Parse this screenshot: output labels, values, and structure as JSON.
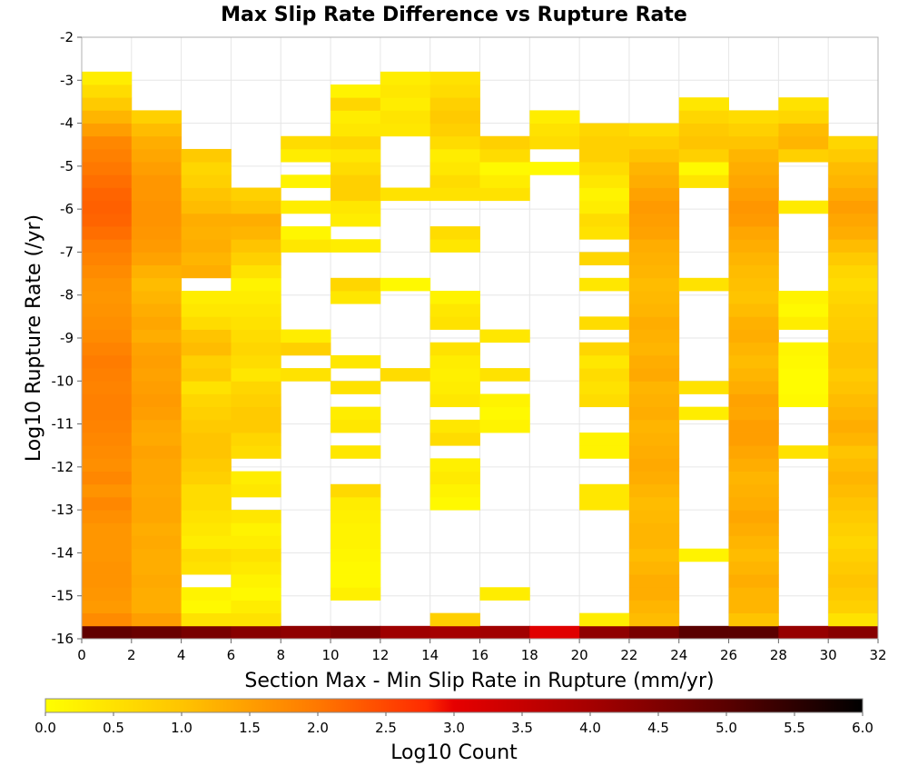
{
  "chart_data": {
    "type": "heatmap",
    "title": "Max Slip Rate Difference vs Rupture Rate",
    "xlabel": "Section Max - Min Slip Rate in Rupture (mm/yr)",
    "ylabel": "Log10 Rupture Rate (/yr)",
    "xlim": [
      0,
      32
    ],
    "ylim": [
      -16,
      -2
    ],
    "x_ticks": [
      "0",
      "2",
      "4",
      "6",
      "8",
      "10",
      "12",
      "14",
      "16",
      "18",
      "20",
      "22",
      "24",
      "26",
      "28",
      "30",
      "32"
    ],
    "y_ticks": [
      "-2",
      "-3",
      "-4",
      "-5",
      "-6",
      "-7",
      "-8",
      "-9",
      "-10",
      "-11",
      "-12",
      "-13",
      "-14",
      "-15",
      "-16"
    ],
    "x_bin_width": 2,
    "y_bin_height": 0.3,
    "y_bin_start": -16,
    "grid": true,
    "colorbar": {
      "label": "Log10 Count",
      "range": [
        0,
        6
      ],
      "ticks": [
        "0.0",
        "0.5",
        "1.0",
        "1.5",
        "2.0",
        "2.5",
        "3.0",
        "3.5",
        "4.0",
        "4.5",
        "5.0",
        "5.5",
        "6.0"
      ],
      "stops": [
        {
          "v": 0.0,
          "color": "#ffff00"
        },
        {
          "v": 1.0,
          "color": "#ffc400"
        },
        {
          "v": 2.0,
          "color": "#ff7800"
        },
        {
          "v": 2.8,
          "color": "#ff2a00"
        },
        {
          "v": 3.0,
          "color": "#e60000"
        },
        {
          "v": 4.0,
          "color": "#a50000"
        },
        {
          "v": 5.0,
          "color": "#5a0000"
        },
        {
          "v": 6.0,
          "color": "#000000"
        }
      ]
    },
    "columns": [
      {
        "x": 1,
        "rows": [
          4.9,
          1.75,
          1.55,
          1.6,
          1.65,
          1.65,
          1.6,
          1.6,
          1.6,
          1.7,
          1.8,
          1.65,
          1.8,
          1.7,
          1.75,
          1.8,
          1.85,
          1.9,
          1.9,
          1.85,
          1.9,
          1.95,
          1.85,
          1.75,
          1.7,
          1.65,
          1.6,
          1.65,
          1.75,
          1.85,
          1.95,
          2.1,
          2.2,
          2.25,
          2.2,
          2.1,
          2.0,
          1.9,
          1.8,
          1.5,
          1.2,
          0.9,
          0.6,
          0.3
        ]
      },
      {
        "x": 3,
        "rows": [
          4.8,
          1.5,
          1.3,
          1.3,
          1.35,
          1.3,
          1.3,
          1.35,
          1.3,
          1.4,
          1.4,
          1.35,
          1.4,
          1.4,
          1.45,
          1.35,
          1.4,
          1.5,
          1.55,
          1.5,
          1.45,
          1.5,
          1.45,
          1.3,
          1.4,
          1.3,
          1.2,
          1.1,
          1.25,
          1.45,
          1.55,
          1.6,
          1.65,
          1.65,
          1.6,
          1.6,
          1.5,
          1.4,
          1.3,
          1.1,
          0.8
        ]
      },
      {
        "x": 5,
        "rows": [
          4.6,
          0.5,
          0.1,
          0.2,
          null,
          0.5,
          0.6,
          0.3,
          0.4,
          0.5,
          0.6,
          0.6,
          0.8,
          0.9,
          1.0,
          1.0,
          0.9,
          0.8,
          0.7,
          0.5,
          0.9,
          0.8,
          1.1,
          1.0,
          0.6,
          0.4,
          0.3,
          null,
          1.3,
          1.2,
          1.3,
          1.25,
          1.3,
          1.1,
          1.0,
          0.8,
          0.7,
          0.9
        ]
      },
      {
        "x": 7,
        "rows": [
          4.4,
          0.5,
          0.3,
          0.1,
          0.2,
          0.35,
          0.5,
          0.3,
          0.2,
          0.4,
          null,
          0.4,
          0.3,
          null,
          0.6,
          0.7,
          0.9,
          0.9,
          0.8,
          0.7,
          0.4,
          0.6,
          0.7,
          0.6,
          0.5,
          0.4,
          0.3,
          0.2,
          0.5,
          0.8,
          1.0,
          1.2,
          1.3,
          1.0,
          0.8
        ]
      },
      {
        "x": 9,
        "rows": [
          4.3,
          null,
          null,
          null,
          null,
          null,
          null,
          null,
          null,
          null,
          null,
          null,
          null,
          null,
          null,
          null,
          null,
          null,
          null,
          null,
          0.5,
          null,
          0.8,
          0.3,
          null,
          null,
          null,
          null,
          null,
          null,
          0.4,
          0.15,
          null,
          0.3,
          null,
          0.2,
          null,
          0.3,
          0.6
        ]
      },
      {
        "x": 11,
        "rows": [
          4.5,
          null,
          null,
          0.25,
          0.1,
          0.1,
          0.15,
          0.2,
          0.2,
          0.25,
          0.3,
          0.65,
          null,
          null,
          0.4,
          null,
          0.4,
          0.3,
          null,
          0.5,
          null,
          0.4,
          null,
          null,
          null,
          null,
          0.4,
          0.7,
          null,
          null,
          0.3,
          null,
          0.3,
          0.4,
          0.8,
          0.8,
          0.6,
          0.4,
          0.7,
          0.4,
          0.3,
          0.7,
          0.2
        ]
      },
      {
        "x": 13,
        "rows": [
          4.1,
          null,
          null,
          null,
          null,
          null,
          null,
          null,
          null,
          null,
          null,
          null,
          null,
          null,
          null,
          null,
          null,
          null,
          null,
          null,
          0.6,
          null,
          null,
          null,
          null,
          null,
          null,
          0.1,
          null,
          null,
          null,
          null,
          null,
          null,
          0.5,
          null,
          null,
          null,
          null,
          0.4,
          0.45,
          0.3,
          0.4,
          0.3
        ]
      },
      {
        "x": 15,
        "rows": [
          4.0,
          0.8,
          null,
          null,
          null,
          null,
          null,
          null,
          null,
          null,
          0.1,
          0.2,
          0.35,
          0.25,
          null,
          0.6,
          0.4,
          null,
          0.4,
          0.3,
          0.25,
          0.3,
          0.5,
          null,
          0.5,
          0.4,
          0.2,
          null,
          null,
          null,
          0.4,
          0.6,
          null,
          null,
          0.5,
          0.6,
          0.4,
          0.3,
          0.6,
          0.8,
          0.9,
          0.8,
          0.6,
          0.5
        ]
      },
      {
        "x": 17,
        "rows": [
          4.05,
          null,
          null,
          0.3,
          null,
          null,
          null,
          null,
          null,
          null,
          null,
          null,
          null,
          null,
          null,
          null,
          0.2,
          0.1,
          0.2,
          null,
          0.5,
          null,
          null,
          0.4,
          null,
          null,
          null,
          null,
          null,
          null,
          null,
          null,
          null,
          null,
          0.5,
          0.3,
          0.1,
          0.6,
          0.8
        ]
      },
      {
        "x": 19,
        "rows": [
          3.1,
          null,
          null,
          null,
          null,
          null,
          null,
          null,
          null,
          null,
          null,
          null,
          null,
          null,
          null,
          null,
          null,
          null,
          null,
          null,
          null,
          null,
          null,
          null,
          null,
          null,
          null,
          null,
          null,
          null,
          null,
          null,
          null,
          null,
          null,
          null,
          0.1,
          null,
          0.6,
          0.5,
          0.3
        ]
      },
      {
        "x": 21,
        "rows": [
          4.3,
          0.3,
          null,
          null,
          null,
          null,
          null,
          null,
          null,
          null,
          0.4,
          0.4,
          null,
          null,
          0.2,
          0.2,
          null,
          null,
          0.6,
          0.5,
          0.6,
          0.4,
          0.7,
          null,
          0.6,
          null,
          null,
          0.4,
          null,
          0.7,
          null,
          0.5,
          0.6,
          0.3,
          0.2,
          0.4,
          0.6,
          0.8,
          0.8,
          0.7
        ]
      },
      {
        "x": 23,
        "rows": [
          4.6,
          1.1,
          1.2,
          1.3,
          1.3,
          1.2,
          1.1,
          1.2,
          1.2,
          1.15,
          1.1,
          1.2,
          1.3,
          1.35,
          1.3,
          1.25,
          1.2,
          1.3,
          1.25,
          1.2,
          1.35,
          1.3,
          1.2,
          1.25,
          1.3,
          1.2,
          1.15,
          1.1,
          1.2,
          1.25,
          1.3,
          1.45,
          1.5,
          1.55,
          1.45,
          1.3,
          1.2,
          1.0,
          0.8,
          0.6
        ]
      },
      {
        "x": 25,
        "rows": [
          5.0,
          null,
          null,
          null,
          null,
          null,
          0.2,
          null,
          null,
          null,
          null,
          null,
          null,
          null,
          null,
          null,
          null,
          0.3,
          null,
          0.5,
          null,
          null,
          null,
          null,
          null,
          null,
          null,
          0.5,
          null,
          null,
          null,
          null,
          null,
          null,
          null,
          0.45,
          0.1,
          0.8,
          1.0,
          0.9,
          0.7,
          0.4
        ]
      },
      {
        "x": 27,
        "rows": [
          5.0,
          1.0,
          1.2,
          1.2,
          1.3,
          1.2,
          1.1,
          1.2,
          1.3,
          1.4,
          1.3,
          1.25,
          1.2,
          1.3,
          1.4,
          1.5,
          1.5,
          1.4,
          1.45,
          1.3,
          1.2,
          1.1,
          1.2,
          1.3,
          1.25,
          1.1,
          1.0,
          1.05,
          1.1,
          1.2,
          1.3,
          1.4,
          1.55,
          1.6,
          1.5,
          1.4,
          1.3,
          1.2,
          1.0,
          0.8,
          0.6
        ]
      },
      {
        "x": 29,
        "rows": [
          4.2,
          null,
          null,
          null,
          null,
          null,
          null,
          null,
          null,
          null,
          null,
          null,
          null,
          null,
          0.5,
          null,
          null,
          null,
          0.1,
          0.05,
          0.05,
          0.1,
          0.15,
          null,
          0.3,
          0.1,
          0.2,
          null,
          null,
          null,
          null,
          null,
          null,
          0.35,
          null,
          null,
          null,
          0.8,
          1.2,
          1.1,
          0.7,
          0.5
        ]
      },
      {
        "x": 31,
        "rows": [
          4.4,
          0.5,
          0.8,
          0.9,
          1.0,
          0.9,
          0.8,
          0.7,
          0.8,
          0.9,
          1.0,
          1.1,
          1.2,
          1.1,
          1.0,
          1.2,
          1.3,
          1.2,
          1.1,
          1.0,
          0.9,
          1.0,
          1.0,
          0.9,
          0.85,
          0.8,
          0.7,
          0.6,
          0.7,
          0.9,
          1.1,
          1.3,
          1.4,
          1.5,
          1.35,
          1.2,
          1.1,
          0.9,
          0.7
        ]
      }
    ]
  }
}
